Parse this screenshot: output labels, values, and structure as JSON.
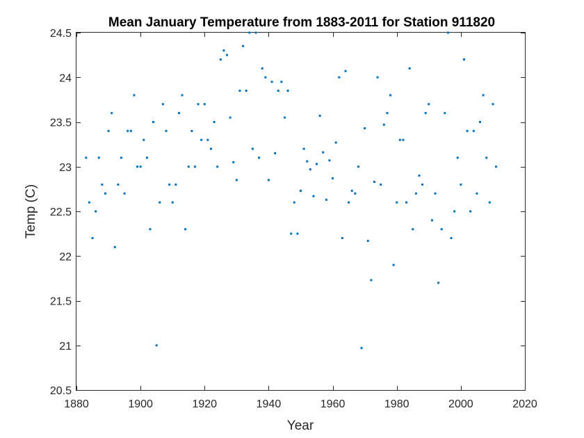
{
  "chart_data": {
    "type": "scatter",
    "title": "Mean January Temperature from 1883-2011 for Station 911820",
    "xlabel": "Year",
    "ylabel": "Temp (C)",
    "xlim": [
      1880,
      2020
    ],
    "ylim": [
      20.5,
      24.5
    ],
    "xticks": [
      1880,
      1900,
      1920,
      1940,
      1960,
      1980,
      2000,
      2020
    ],
    "yticks": [
      20.5,
      21,
      21.5,
      22,
      22.5,
      23,
      23.5,
      24,
      24.5
    ],
    "grid": false,
    "legend": "none",
    "colors": {
      "marker": "#0072BD",
      "axis": "#262626"
    },
    "series": [
      {
        "x": [
          1883,
          1884,
          1885,
          1886,
          1887,
          1888,
          1889,
          1890,
          1891,
          1892,
          1893,
          1894,
          1895,
          1896,
          1897,
          1898,
          1899,
          1900,
          1901,
          1902,
          1903,
          1904,
          1905,
          1906,
          1907,
          1908,
          1909,
          1910,
          1911,
          1912,
          1913,
          1914,
          1915,
          1916,
          1917,
          1918,
          1919,
          1920,
          1921,
          1922,
          1923,
          1924,
          1925,
          1926,
          1927,
          1928,
          1929,
          1930,
          1931,
          1932,
          1933,
          1934,
          1935,
          1936,
          1937,
          1938,
          1939,
          1940,
          1941,
          1942,
          1943,
          1944,
          1945,
          1946,
          1947,
          1948,
          1949,
          1950,
          1951,
          1952,
          1953,
          1954,
          1955,
          1956,
          1957,
          1958,
          1959,
          1960,
          1961,
          1962,
          1963,
          1964,
          1965,
          1966,
          1967,
          1968,
          1969,
          1970,
          1971,
          1972,
          1973,
          1974,
          1975,
          1976,
          1977,
          1978,
          1979,
          1980,
          1981,
          1982,
          1983,
          1984,
          1985,
          1986,
          1987,
          1988,
          1989,
          1990,
          1991,
          1992,
          1993,
          1994,
          1995,
          1996,
          1997,
          1998,
          1999,
          2000,
          2001,
          2002,
          2003,
          2004,
          2005,
          2006,
          2007,
          2008,
          2009,
          2010,
          2011
        ],
        "y": [
          23.1,
          22.6,
          22.2,
          22.5,
          23.1,
          22.8,
          22.7,
          23.4,
          23.6,
          22.1,
          22.8,
          23.1,
          22.7,
          23.4,
          23.4,
          23.8,
          23.0,
          23.0,
          23.3,
          23.1,
          22.3,
          23.5,
          21.0,
          22.6,
          23.7,
          23.4,
          22.8,
          22.6,
          22.8,
          23.6,
          23.8,
          22.3,
          23.0,
          23.4,
          23.0,
          23.7,
          23.3,
          23.7,
          23.3,
          23.2,
          23.5,
          23.0,
          24.2,
          24.3,
          24.25,
          23.55,
          23.05,
          22.85,
          23.85,
          24.35,
          23.85,
          24.5,
          23.2,
          24.5,
          23.1,
          24.1,
          24.0,
          22.85,
          23.95,
          23.15,
          23.85,
          23.95,
          23.55,
          23.85,
          22.25,
          22.6,
          22.25,
          22.73,
          23.2,
          23.06,
          22.97,
          22.67,
          23.03,
          23.57,
          23.16,
          22.63,
          23.07,
          22.87,
          23.27,
          24.0,
          22.2,
          24.07,
          22.6,
          22.73,
          22.7,
          23.0,
          20.97,
          23.43,
          22.17,
          21.73,
          22.83,
          24.0,
          22.8,
          23.47,
          23.6,
          23.8,
          21.9,
          22.6,
          23.3,
          23.3,
          22.6,
          24.1,
          22.3,
          22.7,
          22.9,
          22.8,
          23.6,
          23.7,
          22.4,
          22.7,
          21.7,
          22.3,
          23.6,
          24.5,
          22.2,
          22.5,
          23.1,
          22.8,
          24.2,
          23.4,
          22.5,
          23.4,
          22.7,
          23.5,
          23.8,
          23.1,
          22.6,
          23.7,
          23.0
        ]
      }
    ]
  }
}
